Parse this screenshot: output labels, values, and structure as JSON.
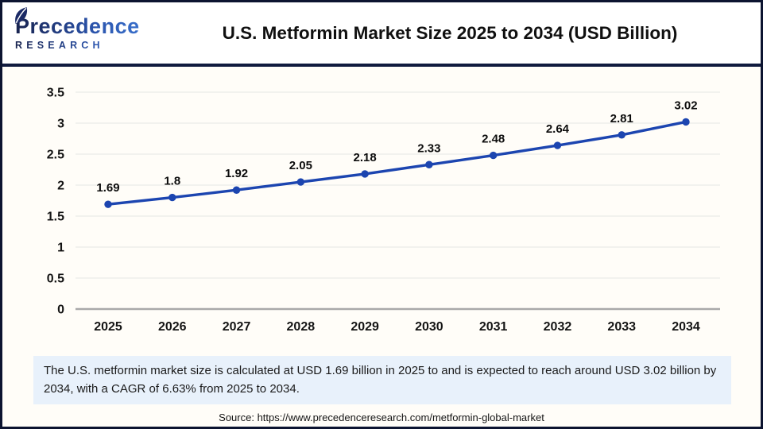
{
  "header": {
    "logo": {
      "name": "Precedence",
      "subtitle": "RESEARCH"
    },
    "title": "U.S. Metformin Market Size 2025 to 2034 (USD Billion)"
  },
  "chart_data": {
    "type": "line",
    "title": "U.S. Metformin Market Size 2025 to 2034 (USD Billion)",
    "categories": [
      "2025",
      "2026",
      "2027",
      "2028",
      "2029",
      "2030",
      "2031",
      "2032",
      "2033",
      "2034"
    ],
    "series": [
      {
        "name": "U.S. Metformin Market Size (USD Billion)",
        "values": [
          1.69,
          1.8,
          1.92,
          2.05,
          2.18,
          2.33,
          2.48,
          2.64,
          2.81,
          3.02
        ]
      }
    ],
    "data_labels": [
      "1.69",
      "1.8",
      "1.92",
      "2.05",
      "2.18",
      "2.33",
      "2.48",
      "2.64",
      "2.81",
      "3.02"
    ],
    "xlabel": "",
    "ylabel": "",
    "ylim": [
      0,
      3.5
    ],
    "yticks": [
      "0",
      "0.5",
      "1",
      "1.5",
      "2",
      "2.5",
      "3",
      "3.5"
    ],
    "grid": true,
    "legend_position": "none",
    "line_color": "#1c45b0",
    "marker_color": "#1c45b0",
    "gridline_color": "#ebebe8",
    "zero_line_color": "#a9a9a9"
  },
  "note": {
    "text": "The U.S. metformin market size is calculated at USD 1.69 billion in 2025 to and is expected to reach around USD 3.02 billion by 2034, with a CAGR of 6.63% from 2025 to 2034."
  },
  "source": {
    "text": "Source: https://www.precedenceresearch.com/metformin-global-market"
  },
  "colors": {
    "frame_border": "#0c1430",
    "separator": "#101a3e",
    "note_background": "#e8f1fb",
    "logo_dark": "#18234f",
    "logo_light": "#3e7ad8",
    "chart_background": "#fffdf8"
  }
}
